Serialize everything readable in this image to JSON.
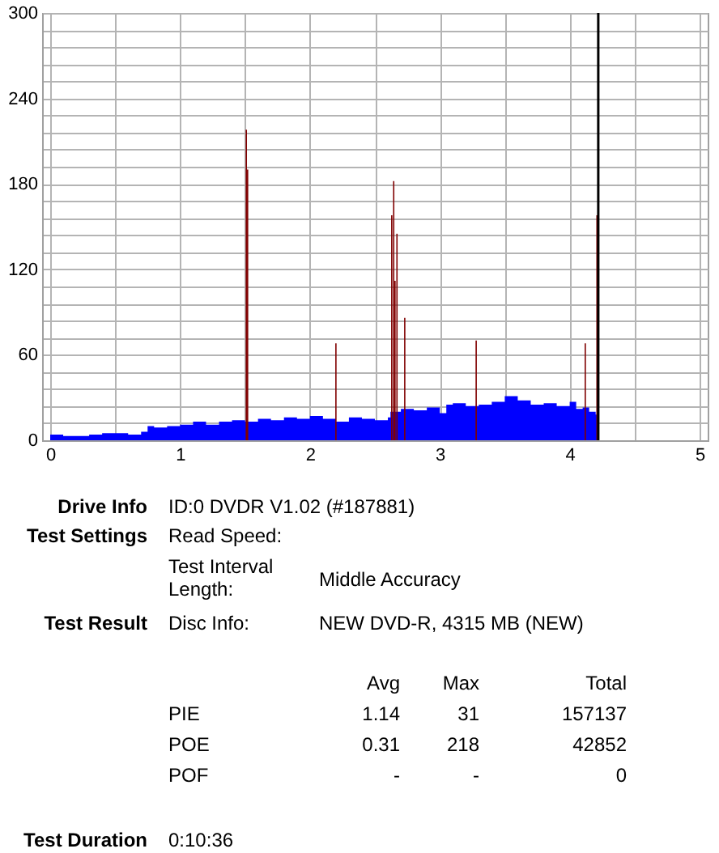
{
  "chart_data": {
    "type": "area",
    "xlim": [
      0,
      5
    ],
    "xticks": [
      0,
      {
        "value": 0.5,
        "label": null
      },
      1,
      {
        "value": 1.5,
        "label": null
      },
      2,
      {
        "value": 2.5,
        "label": null
      },
      3,
      {
        "value": 3.5,
        "label": null
      },
      4,
      {
        "value": 4.5,
        "label": null
      },
      5
    ],
    "ylim": [
      0,
      300
    ],
    "yticks": [
      0,
      {
        "value": 12,
        "label": null
      },
      {
        "value": 24,
        "label": null
      },
      {
        "value": 36,
        "label": null
      },
      {
        "value": 48,
        "label": null
      },
      60,
      {
        "value": 72,
        "label": null
      },
      {
        "value": 84,
        "label": null
      },
      {
        "value": 96,
        "label": null
      },
      {
        "value": 108,
        "label": null
      },
      120,
      {
        "value": 132,
        "label": null
      },
      {
        "value": 144,
        "label": null
      },
      {
        "value": 156,
        "label": null
      },
      {
        "value": 168,
        "label": null
      },
      180,
      {
        "value": 192,
        "label": null
      },
      {
        "value": 204,
        "label": null
      },
      {
        "value": 216,
        "label": null
      },
      {
        "value": 228,
        "label": null
      },
      240,
      {
        "value": 252,
        "label": null
      },
      {
        "value": 264,
        "label": null
      },
      {
        "value": 276,
        "label": null
      },
      {
        "value": 288,
        "label": null
      },
      300
    ],
    "grid": true,
    "series": [
      {
        "color": "#0000ff",
        "x": [
          0,
          0.1,
          0.2,
          0.3,
          0.4,
          0.5,
          0.6,
          0.7,
          0.75,
          0.8,
          0.9,
          1.0,
          1.1,
          1.2,
          1.3,
          1.4,
          1.5,
          1.6,
          1.7,
          1.8,
          1.9,
          2.0,
          2.1,
          2.2,
          2.3,
          2.4,
          2.5,
          2.6,
          2.62,
          2.7,
          2.8,
          2.9,
          3.0,
          3.05,
          3.1,
          3.2,
          3.3,
          3.4,
          3.5,
          3.6,
          3.7,
          3.8,
          3.9,
          4.0,
          4.05,
          4.1,
          4.15,
          4.2,
          4.22
        ],
        "values": [
          4,
          3,
          3,
          4,
          5,
          5,
          4,
          6,
          10,
          9,
          10,
          11,
          13,
          11,
          13,
          14,
          13,
          15,
          14,
          16,
          15,
          17,
          15,
          13,
          16,
          15,
          14,
          16,
          20,
          22,
          21,
          23,
          19,
          25,
          26,
          24,
          25,
          27,
          31,
          28,
          25,
          26,
          24,
          27,
          22,
          23,
          20,
          18,
          18
        ]
      },
      {
        "type": "bar",
        "color": "#800000",
        "x": [
          1.51,
          1.52,
          2.2,
          2.63,
          2.645,
          2.655,
          2.67,
          2.73,
          3.28,
          4.12,
          4.21
        ],
        "values": [
          218,
          190,
          68,
          158,
          182,
          112,
          145,
          86,
          70,
          68,
          158
        ]
      }
    ],
    "ref_lines": [
      {
        "axis": "x",
        "value": 4.22,
        "color": "#000000"
      }
    ],
    "annotations": [
      "Drive Info",
      "ID:0 DVDR V1.02 (#187881)",
      "Test Settings",
      "Read Speed:",
      "Test Interval Length:",
      "Middle Accuracy",
      "Test Result",
      "Disc Info:",
      "NEW DVD-R, 4315 MB (NEW)",
      "Avg",
      "Max",
      "Total",
      "PIE",
      "1.14",
      "31",
      "157137",
      "POE",
      "0.31",
      "218",
      "42852",
      "POF",
      "-",
      "-",
      "0",
      "Test Duration",
      "0:10:36"
    ]
  }
}
